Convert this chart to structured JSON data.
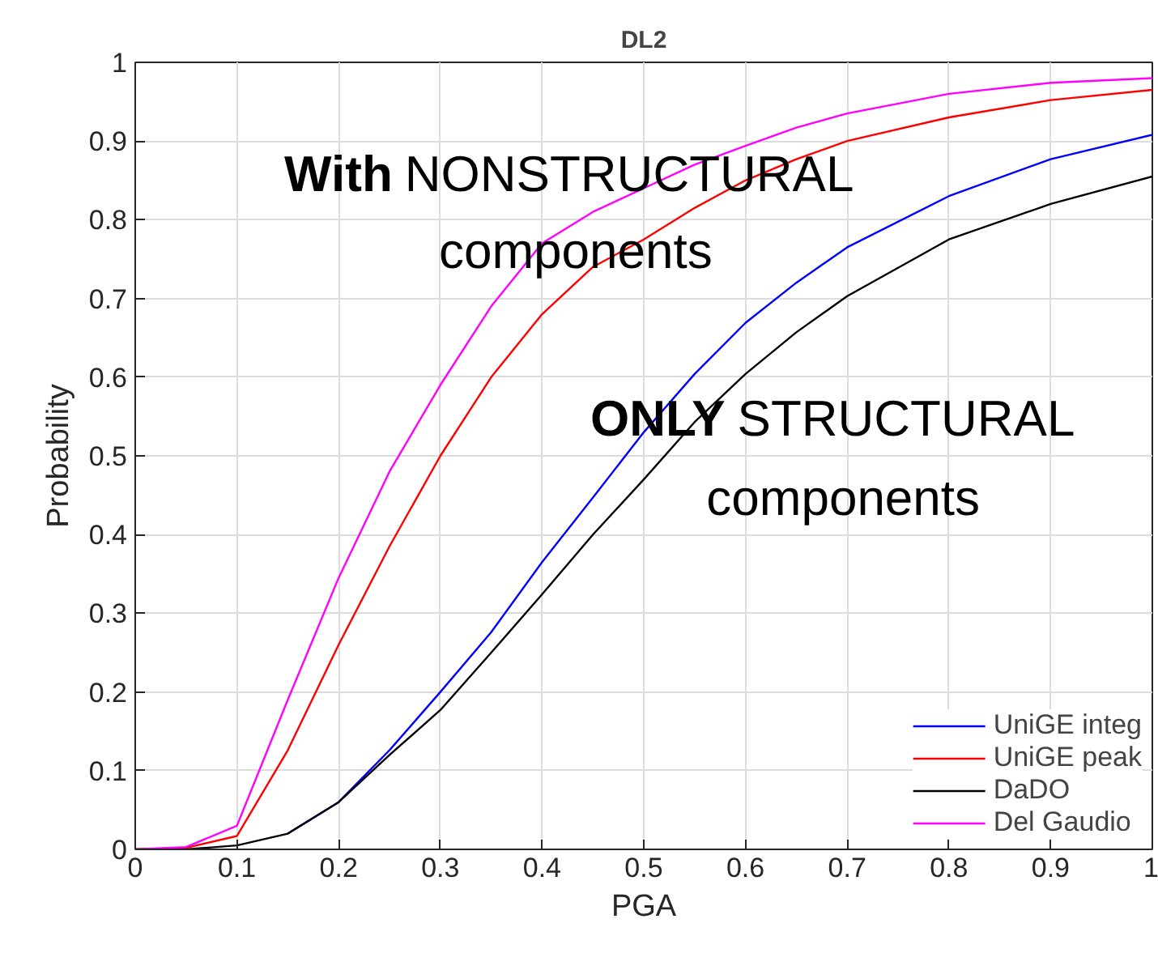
{
  "chart_data": {
    "type": "line",
    "title": "DL2",
    "xlabel": "PGA",
    "ylabel": "Probability",
    "x": [
      0,
      0.05,
      0.1,
      0.15,
      0.2,
      0.25,
      0.3,
      0.35,
      0.4,
      0.45,
      0.5,
      0.55,
      0.6,
      0.65,
      0.7,
      0.8,
      0.9,
      1.0
    ],
    "series": [
      {
        "name": "UniGE integ",
        "color": "#0000ff",
        "values": [
          null,
          null,
          null,
          0.02,
          0.06,
          0.126,
          0.2,
          0.276,
          0.365,
          0.447,
          0.53,
          0.604,
          0.669,
          0.72,
          0.765,
          0.83,
          0.877,
          0.908
        ]
      },
      {
        "name": "UniGE peak",
        "color": "#ff0000",
        "values": [
          0,
          0.002,
          0.017,
          0.126,
          0.26,
          0.385,
          0.5,
          0.6,
          0.68,
          0.74,
          0.775,
          0.815,
          0.85,
          0.877,
          0.9,
          0.93,
          0.952,
          0.965
        ]
      },
      {
        "name": "DaDO",
        "color": "#000000",
        "values": [
          0,
          0.0,
          0.005,
          0.02,
          0.06,
          0.12,
          0.177,
          0.25,
          0.324,
          0.4,
          0.47,
          0.543,
          0.604,
          0.657,
          0.703,
          0.775,
          0.82,
          0.855
        ]
      },
      {
        "name": "Del Gaudio",
        "color": "#ff00ff",
        "values": [
          0,
          0.003,
          0.03,
          0.19,
          0.345,
          0.48,
          0.59,
          0.69,
          0.77,
          0.81,
          0.84,
          0.87,
          0.894,
          0.917,
          0.935,
          0.96,
          0.974,
          0.98
        ]
      }
    ],
    "xlim": [
      0,
      1
    ],
    "ylim": [
      0,
      1
    ],
    "xticks": [
      0,
      0.1,
      0.2,
      0.3,
      0.4,
      0.5,
      0.6,
      0.7,
      0.8,
      0.9,
      1
    ],
    "yticks": [
      0,
      0.1,
      0.2,
      0.3,
      0.4,
      0.5,
      0.6,
      0.7,
      0.8,
      0.9,
      1
    ],
    "grid": true,
    "legend": "bottom right",
    "marker": "none",
    "line_style": "solid",
    "annotations": [
      "With NONSTRUCTURAL\ncomponents",
      "ONLY STRUCTURAL\ncomponents"
    ]
  }
}
